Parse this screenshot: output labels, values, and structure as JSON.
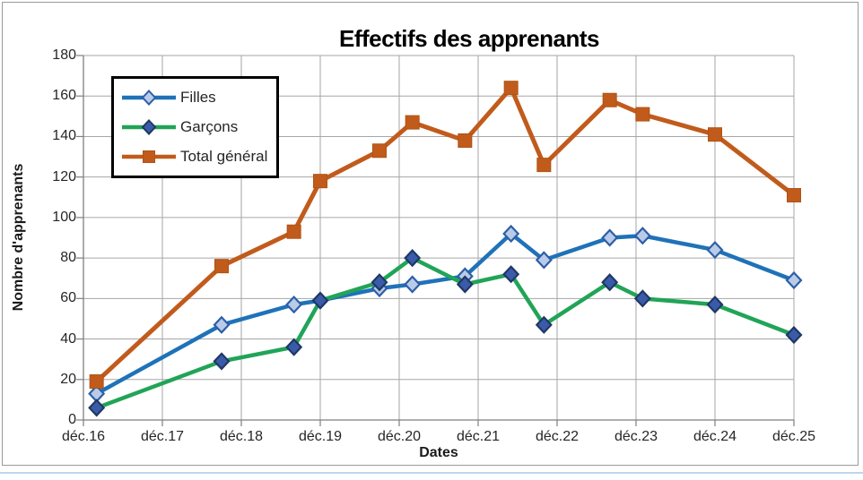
{
  "title": "Effectifs des apprenants",
  "axes": {
    "y": {
      "title": "Nombre d'apprenants",
      "min": 0,
      "max": 180,
      "step": 20
    },
    "x": {
      "title": "Dates",
      "tick_labels": [
        "déc.16",
        "déc.17",
        "déc.18",
        "déc.19",
        "déc.20",
        "déc.21",
        "déc.22",
        "déc.23",
        "déc.24",
        "déc.25"
      ]
    }
  },
  "legend": {
    "position": "top-left-inside",
    "border_color": "#000000",
    "background": "#FFFFFF"
  },
  "colors": {
    "background": "#FFFFFF",
    "gridline": "#A6A6A6",
    "axis_line": "#7F7F7F",
    "tick_text": "#262626",
    "title_text": "#000000",
    "frame_border": "#9A9A9A",
    "worksheet_line": "#BDD7EE"
  },
  "chart_data": {
    "type": "line",
    "title": "Effectifs des apprenants",
    "xlabel": "Dates",
    "ylabel": "Nombre d'apprenants",
    "ylim": [
      0,
      180
    ],
    "y_step": 20,
    "grid": true,
    "legend_position": "top-left-inside",
    "x_axis_unit": "months after déc.16",
    "x_tick_months": [
      0,
      12,
      24,
      36,
      48,
      60,
      72,
      84,
      96,
      108
    ],
    "x_tick_labels": [
      "déc.16",
      "déc.17",
      "déc.18",
      "déc.19",
      "déc.20",
      "déc.21",
      "déc.22",
      "déc.23",
      "déc.24",
      "déc.25"
    ],
    "x_months": [
      2,
      21,
      32,
      36,
      45,
      50,
      58,
      65,
      70,
      80,
      85,
      96,
      108
    ],
    "series": [
      {
        "name": "Filles",
        "values": [
          13,
          47,
          57,
          59,
          65,
          67,
          71,
          92,
          79,
          90,
          91,
          84,
          69
        ],
        "line_color": "#1F72B8",
        "line_width": 4.5,
        "marker": "diamond",
        "marker_fill": "#B9CBE8",
        "marker_stroke": "#2D5FA6"
      },
      {
        "name": "Garçons",
        "values": [
          6,
          29,
          36,
          59,
          68,
          80,
          67,
          72,
          47,
          68,
          60,
          57,
          42
        ],
        "line_color": "#21A457",
        "line_width": 4.5,
        "marker": "diamond",
        "marker_fill": "#3A5BA9",
        "marker_stroke": "#1F3864"
      },
      {
        "name": "Total général",
        "values": [
          19,
          76,
          93,
          118,
          133,
          147,
          138,
          164,
          126,
          158,
          151,
          141,
          111
        ],
        "line_color": "#C15B1C",
        "line_width": 5,
        "marker": "square",
        "marker_fill": "#C15B1C",
        "marker_stroke": "#B05312"
      }
    ]
  }
}
